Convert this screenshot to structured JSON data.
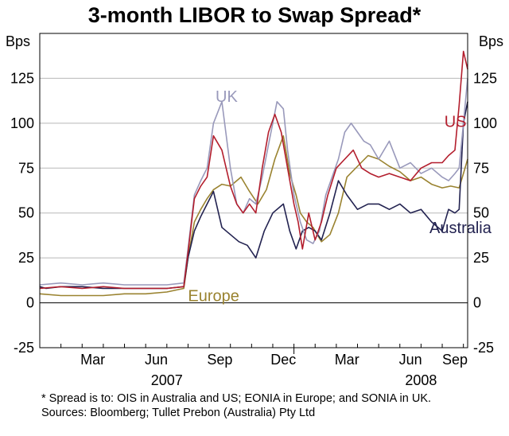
{
  "chart_data": {
    "type": "line",
    "title": "3-month LIBOR to Swap Spread*",
    "ylabel_left": "Bps",
    "ylabel_right": "Bps",
    "ylim": [
      -25,
      150
    ],
    "yticks": [
      -25,
      0,
      25,
      50,
      75,
      100,
      125
    ],
    "xlim": [
      0,
      20.2
    ],
    "x_unit": "months since 1 January 2007",
    "month_ticks": [
      {
        "label": "Mar",
        "x": 2.5
      },
      {
        "label": "Jun",
        "x": 5.5
      },
      {
        "label": "Sep",
        "x": 8.5
      },
      {
        "label": "Dec",
        "x": 11.5
      },
      {
        "label": "Mar",
        "x": 14.5
      },
      {
        "label": "Jun",
        "x": 17.5
      },
      {
        "label": "Sep",
        "x": 20.5
      }
    ],
    "year_labels": [
      {
        "label": "2007",
        "x": 6.0
      },
      {
        "label": "2008",
        "x": 18.0
      }
    ],
    "series": [
      {
        "name": "Europe",
        "color": "#9a8330",
        "label": {
          "text": "Europe",
          "x": 7.0,
          "y": 4
        },
        "x": [
          0,
          1,
          2,
          3,
          4,
          5,
          6,
          6.8,
          7.0,
          7.3,
          7.6,
          7.9,
          8.2,
          8.6,
          9.0,
          9.5,
          9.9,
          10.3,
          10.7,
          11.1,
          11.5,
          11.8,
          12.1,
          12.3,
          12.6,
          12.9,
          13.3,
          13.7,
          14.1,
          14.5,
          15.0,
          15.5,
          16.0,
          16.5,
          17.0,
          17.5,
          18.0,
          18.5,
          19.0,
          19.4,
          19.8,
          20.0,
          20.2
        ],
        "y": [
          5,
          4,
          4,
          4,
          5,
          5,
          6,
          8,
          25,
          45,
          52,
          58,
          63,
          66,
          65,
          70,
          62,
          55,
          63,
          80,
          93,
          72,
          60,
          50,
          45,
          42,
          34,
          38,
          50,
          70,
          76,
          82,
          80,
          76,
          73,
          68,
          70,
          66,
          64,
          65,
          64,
          72,
          80
        ]
      },
      {
        "name": "Australia",
        "color": "#222250",
        "label": {
          "text": "Australia",
          "x": 18.4,
          "y": 42
        },
        "x": [
          0,
          0.3,
          1,
          2,
          3,
          4,
          5,
          6,
          6.8,
          7.0,
          7.3,
          7.6,
          7.9,
          8.2,
          8.6,
          9.0,
          9.4,
          9.8,
          10.2,
          10.6,
          11.0,
          11.5,
          11.8,
          12.1,
          12.4,
          12.7,
          13.0,
          13.3,
          13.7,
          14.1,
          14.5,
          15.0,
          15.5,
          16.0,
          16.5,
          17.0,
          17.5,
          18.0,
          18.5,
          19.0,
          19.3,
          19.6,
          19.8,
          20.0,
          20.2
        ],
        "y": [
          9,
          8,
          9,
          9,
          8,
          8,
          8,
          8,
          9,
          25,
          40,
          48,
          55,
          62,
          42,
          38,
          34,
          32,
          25,
          40,
          50,
          55,
          40,
          30,
          40,
          42,
          40,
          35,
          50,
          68,
          60,
          52,
          55,
          55,
          52,
          55,
          50,
          52,
          45,
          40,
          52,
          50,
          52,
          100,
          112
        ]
      },
      {
        "name": "UK",
        "color": "#9999bb",
        "label": {
          "text": "UK",
          "x": 8.3,
          "y": 115
        },
        "x": [
          0,
          1,
          2,
          3,
          4,
          5,
          6,
          6.8,
          7.0,
          7.3,
          7.6,
          7.9,
          8.2,
          8.6,
          9.0,
          9.3,
          9.6,
          9.9,
          10.2,
          10.5,
          10.8,
          11.0,
          11.2,
          11.5,
          11.7,
          12.0,
          12.3,
          12.6,
          12.9,
          13.2,
          13.5,
          13.8,
          14.1,
          14.4,
          14.7,
          15.0,
          15.3,
          15.6,
          16.0,
          16.5,
          17.0,
          17.5,
          18.0,
          18.5,
          19.0,
          19.3,
          19.6,
          19.8,
          20.0,
          20.2
        ],
        "y": [
          10,
          11,
          10,
          11,
          10,
          10,
          10,
          11,
          30,
          60,
          68,
          75,
          100,
          112,
          75,
          55,
          50,
          58,
          55,
          70,
          88,
          100,
          112,
          108,
          85,
          60,
          45,
          35,
          33,
          40,
          60,
          70,
          80,
          95,
          100,
          95,
          90,
          88,
          80,
          90,
          75,
          78,
          72,
          75,
          70,
          68,
          72,
          75,
          100,
          125
        ]
      },
      {
        "name": "US",
        "color": "#b31e2d",
        "label": {
          "text": "US",
          "x": 19.1,
          "y": 101
        },
        "x": [
          0,
          1,
          2,
          3,
          4,
          5,
          6,
          6.8,
          7.0,
          7.3,
          7.6,
          7.9,
          8.2,
          8.6,
          9.0,
          9.3,
          9.6,
          9.9,
          10.2,
          10.5,
          10.8,
          11.1,
          11.4,
          11.7,
          12.0,
          12.2,
          12.4,
          12.7,
          13.0,
          13.3,
          13.6,
          14.0,
          14.4,
          14.8,
          15.2,
          15.6,
          16.0,
          16.5,
          17.0,
          17.5,
          18.0,
          18.5,
          19.0,
          19.3,
          19.6,
          19.8,
          20.0,
          20.2
        ],
        "y": [
          8,
          9,
          8,
          9,
          8,
          8,
          8,
          9,
          28,
          58,
          65,
          70,
          93,
          85,
          65,
          55,
          50,
          55,
          50,
          75,
          95,
          105,
          95,
          75,
          55,
          45,
          30,
          50,
          35,
          45,
          60,
          75,
          80,
          85,
          75,
          72,
          70,
          72,
          70,
          68,
          75,
          78,
          78,
          82,
          85,
          110,
          140,
          130
        ]
      }
    ],
    "footnote": "*   Spread is to: OIS in Australia and US; EONIA in Europe; and SONIA in UK.",
    "sources": "Sources: Bloomberg; Tullet Prebon (Australia) Pty Ltd"
  }
}
